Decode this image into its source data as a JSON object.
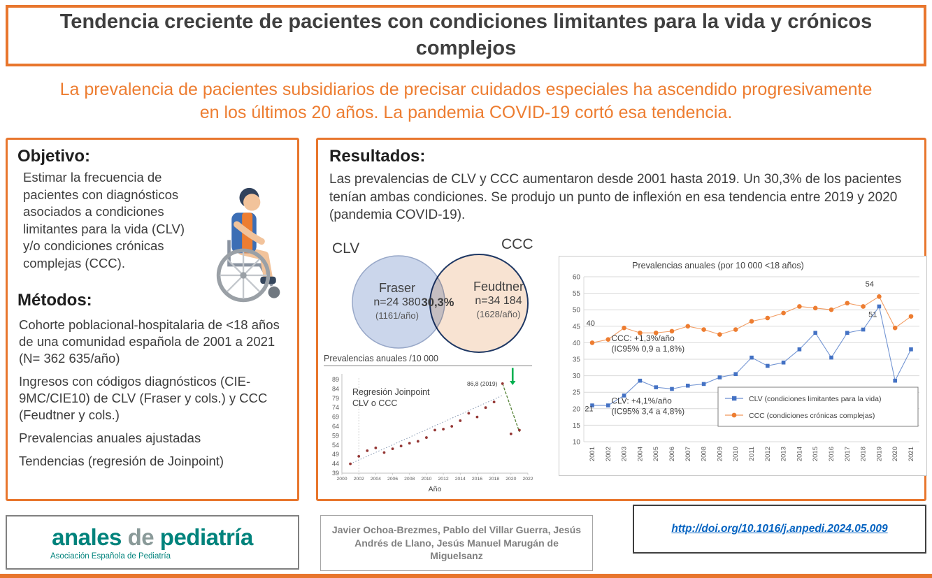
{
  "title": "Tendencia creciente de pacientes con condiciones limitantes para la vida y crónicos complejos",
  "subtitle": "La prevalencia de pacientes subsidiarios de precisar cuidados especiales ha ascendido progresivamente en los últimos 20 años. La pandemia COVID-19 cortó esa tendencia.",
  "objective": {
    "heading": "Objetivo:",
    "text": "Estimar la frecuencia de pacientes con diagnósticos asociados a condiciones limitantes para la vida (CLV) y/o condiciones crónicas complejas (CCC)."
  },
  "methods": {
    "heading": "Métodos:",
    "items": [
      "Cohorte poblacional-hospitalaria de <18 años de una comunidad española de 2001 a 2021 (N= 362 635/año)",
      "Ingresos con códigos diagnósticos (CIE-9MC/CIE10) de CLV (Fraser y cols.) y CCC (Feudtner y cols.)",
      "Prevalencias anuales ajustadas",
      "Tendencias (regresión de Joinpoint)"
    ]
  },
  "results": {
    "heading": "Resultados:",
    "text": "Las prevalencias de CLV y CCC aumentaron desde 2001 hasta 2019. Un 30,3% de los pacientes tenían ambas condiciones. Se produjo un punto de inflexión en esa tendencia entre 2019 y 2020 (pandemia COVID-19)."
  },
  "venn": {
    "left_label": "CLV",
    "right_label": "CCC",
    "left_name": "Fraser",
    "left_n": "n=24 380",
    "left_rate": "(1161/año)",
    "overlap": "30,3%",
    "right_name": "Feudtner",
    "right_n": "n=34 184",
    "right_rate": "(1628/año)",
    "left_fill": "#CBD6EB",
    "left_stroke": "#98A8C8",
    "right_fill": "#F8E3D2",
    "right_stroke": "#1F3864"
  },
  "chart_data": [
    {
      "type": "scatter",
      "title": "Prevalencias anuales /10 000",
      "inner_label": [
        "Regresión Joinpoint",
        "CLV o CCC"
      ],
      "annotation": "86,8 (2019)",
      "xlabel": "Año",
      "xlim": [
        2000,
        2022
      ],
      "ylim": [
        39,
        89
      ],
      "yticks": [
        89,
        84,
        79,
        74,
        69,
        64,
        59,
        54,
        49,
        44,
        39
      ],
      "xticks": [
        2000,
        2002,
        2004,
        2006,
        2008,
        2010,
        2012,
        2014,
        2016,
        2018,
        2020,
        2022
      ],
      "x": [
        2001,
        2002,
        2003,
        2004,
        2005,
        2006,
        2007,
        2008,
        2009,
        2010,
        2011,
        2012,
        2013,
        2014,
        2015,
        2016,
        2017,
        2018,
        2019,
        2020,
        2021
      ],
      "values": [
        44,
        48,
        51,
        52.5,
        50,
        52,
        53.5,
        55,
        56,
        58,
        62,
        62.5,
        64,
        67,
        71,
        69,
        74,
        77,
        86.8,
        60,
        62
      ],
      "trend": [
        [
          2001,
          44
        ],
        [
          2019,
          80.5
        ]
      ],
      "drop": [
        [
          2019,
          86.8
        ],
        [
          2021,
          61
        ]
      ],
      "joinpoint_year": 2002,
      "point_color": "#943634",
      "arrow_color": "#00B050",
      "trend_color": "#8496B0",
      "drop_color": "#548235"
    },
    {
      "type": "line",
      "title": "Prevalencias anuales (por 10 000 <18 años)",
      "ylim": [
        10,
        60
      ],
      "yticks": [
        60,
        55,
        50,
        45,
        40,
        35,
        30,
        25,
        20,
        15,
        10
      ],
      "categories": [
        2001,
        2002,
        2003,
        2004,
        2005,
        2006,
        2007,
        2008,
        2009,
        2010,
        2011,
        2012,
        2013,
        2014,
        2015,
        2016,
        2017,
        2018,
        2019,
        2020,
        2021
      ],
      "series": [
        {
          "name": "CLV (condiciones limitantes para la vida)",
          "marker": "square",
          "color": "#4472C4",
          "values": [
            21,
            21,
            24,
            28.5,
            26.5,
            26,
            27,
            27.5,
            29.5,
            30.5,
            35.5,
            33,
            34,
            38,
            43,
            35.5,
            43,
            44,
            51,
            28.5,
            38
          ]
        },
        {
          "name": "CCC (condiciones crónicas complejas)",
          "marker": "circle",
          "color": "#ED7D31",
          "values": [
            40,
            41,
            44.5,
            43,
            43,
            43.5,
            45,
            44,
            42.5,
            44,
            46.5,
            47.5,
            49,
            51,
            50.5,
            50,
            52,
            51,
            54,
            44.5,
            48
          ]
        }
      ],
      "annotations": [
        {
          "text": "40",
          "x": 2000.9,
          "y": 45.2
        },
        {
          "text": "21",
          "x": 2000.8,
          "y": 19.2
        },
        {
          "text": "54",
          "x": 2018.4,
          "y": 57
        },
        {
          "text": "51",
          "x": 2018.6,
          "y": 47.8
        }
      ],
      "notes": [
        {
          "lines": [
            "CCC: +1,3%/año",
            "(IC95% 0,9 a 1,8%)"
          ],
          "x": 2002.2,
          "y": 40.5
        },
        {
          "lines": [
            "CLV: +4,1%/año",
            "(IC95% 3,4 a 4,8%)"
          ],
          "x": 2002.2,
          "y": 21.5
        }
      ],
      "legend_position": "right-bottom",
      "grid": "horizontal"
    }
  ],
  "footer": {
    "logo_part1": "anales",
    "logo_part2": "de",
    "logo_part3": "pediatría",
    "logo_tagline": "Asociación Española de Pediatría",
    "authors": "Javier Ochoa-Brezmes, Pablo del Villar Guerra, Jesús Andrés de Llano,  Jesús Manuel Marugán de Miguelsanz",
    "doi": "http://doi.org/10.1016/j.anpedi.2024.05.009"
  }
}
